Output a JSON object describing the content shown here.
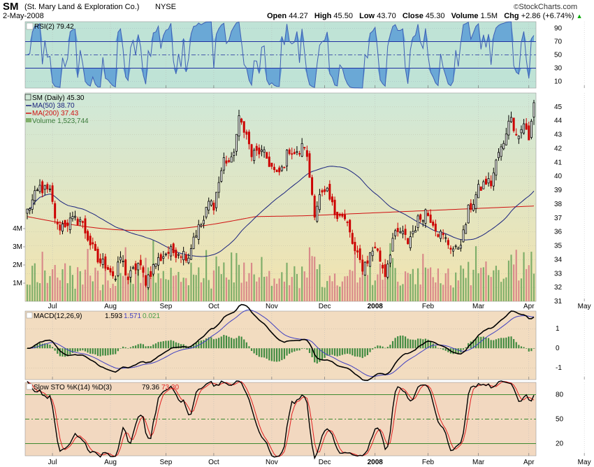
{
  "header": {
    "ticker": "SM",
    "company": "(St. Mary Land & Exploration Co.)",
    "exchange": "NYSE",
    "date": "2-May-2008",
    "open_label": "Open",
    "open": "44.27",
    "high_label": "High",
    "high": "45.50",
    "low_label": "Low",
    "low": "43.70",
    "close_label": "Close",
    "close": "45.30",
    "volume_label": "Volume",
    "volume": "1.5M",
    "chg_label": "Chg",
    "chg": "+2.86 (+6.74%)",
    "brand": "StockCharts.com",
    "brand_symbol": "©",
    "chg_arrow": "▲"
  },
  "colors": {
    "rsi_bg": "#bfe3d6",
    "price_bg_top": "#cfe8d8",
    "price_bg_bottom": "#f3e3ae",
    "macd_bg": "#f2dcc0",
    "sto_bg": "#f2d8c0",
    "rsi_line": "#3d5fb5",
    "rsi_fill": "#6aa8d6",
    "up": "#000000",
    "down": "#cc0000",
    "ma50": "#1a237e",
    "ma200": "#d01010",
    "vol_up": "#7fae6a",
    "vol_down": "#d98a8a",
    "macd_line": "#000000",
    "macd_signal": "#4040c0",
    "macd_hist": "#3f8a3f",
    "sto_k": "#000000",
    "sto_d": "#e02020",
    "hline": "#007000"
  },
  "chart_data": [
    {
      "type": "line",
      "name_label": "RSI(2) 79.42",
      "ylim": [
        0,
        100
      ],
      "yticks": [
        "90",
        "70",
        "50",
        "30",
        "10"
      ],
      "ytick_values": [
        90,
        70,
        50,
        30,
        10
      ],
      "levels": [
        70,
        50,
        30
      ],
      "series": [
        {
          "name": "RSI(2)",
          "last": 79.42
        }
      ]
    },
    {
      "type": "candlestick",
      "title": "SM (Daily) 45.30",
      "legend": [
        "MA(50) 38.70",
        "MA(200) 37.43",
        "Volume 1,523,744"
      ],
      "ylim": [
        31,
        46
      ],
      "yticks": [
        "45",
        "44",
        "43",
        "42",
        "41",
        "40",
        "39",
        "38",
        "37",
        "36",
        "35",
        "34",
        "33",
        "32",
        "31"
      ],
      "ytick_values": [
        45,
        44,
        43,
        42,
        41,
        40,
        39,
        38,
        37,
        36,
        35,
        34,
        33,
        32,
        31
      ],
      "volume_ticks": [
        "4M",
        "3M",
        "2M",
        "1M"
      ],
      "volume_tick_values": [
        4,
        3,
        2,
        1
      ],
      "x_months": [
        "Jul",
        "Aug",
        "Sep",
        "Oct",
        "Nov",
        "Dec",
        "2008",
        "Feb",
        "Mar",
        "Apr",
        "May"
      ],
      "month_start_index": [
        10,
        33,
        55,
        74,
        97,
        118,
        138,
        159,
        179,
        199,
        221
      ],
      "keypoints": [
        [
          0,
          37.5
        ],
        [
          5,
          39.2
        ],
        [
          9,
          38.8
        ],
        [
          12,
          36.3
        ],
        [
          16,
          36.7
        ],
        [
          21,
          36.9
        ],
        [
          24,
          35.6
        ],
        [
          28,
          33.9
        ],
        [
          32,
          33.6
        ],
        [
          35,
          32.6
        ],
        [
          37,
          34.2
        ],
        [
          40,
          32.6
        ],
        [
          44,
          33.7
        ],
        [
          47,
          32.5
        ],
        [
          51,
          33.8
        ],
        [
          55,
          34.5
        ],
        [
          60,
          34.6
        ],
        [
          64,
          34.3
        ],
        [
          66,
          35.7
        ],
        [
          70,
          36.8
        ],
        [
          72,
          38.1
        ],
        [
          74,
          38.0
        ],
        [
          78,
          41.2
        ],
        [
          81,
          41.0
        ],
        [
          84,
          44.0
        ],
        [
          86,
          43.6
        ],
        [
          89,
          41.5
        ],
        [
          92,
          41.8
        ],
        [
          95,
          41.3
        ],
        [
          99,
          40.0
        ],
        [
          101,
          40.5
        ],
        [
          104,
          42.0
        ],
        [
          107,
          41.5
        ],
        [
          110,
          42.3
        ],
        [
          112,
          40.0
        ],
        [
          114,
          37.5
        ],
        [
          116,
          38.5
        ],
        [
          119,
          38.7
        ],
        [
          122,
          37.4
        ],
        [
          124,
          37.4
        ],
        [
          127,
          36.5
        ],
        [
          130,
          34.5
        ],
        [
          133,
          33.5
        ],
        [
          135,
          34.0
        ],
        [
          138,
          35.0
        ],
        [
          142,
          33.0
        ],
        [
          145,
          35.5
        ],
        [
          148,
          36.0
        ],
        [
          151,
          35.3
        ],
        [
          155,
          36.8
        ],
        [
          158,
          37.5
        ],
        [
          161,
          36.8
        ],
        [
          163,
          36.0
        ],
        [
          167,
          35.2
        ],
        [
          170,
          34.6
        ],
        [
          173,
          35.8
        ],
        [
          175,
          37.5
        ],
        [
          177,
          38.2
        ],
        [
          179,
          39.0
        ],
        [
          182,
          39.6
        ],
        [
          184,
          39.5
        ],
        [
          187,
          41.7
        ],
        [
          189,
          42.2
        ],
        [
          191,
          44.3
        ],
        [
          193,
          43.7
        ],
        [
          195,
          42.9
        ],
        [
          197,
          43.9
        ],
        [
          199,
          42.5
        ],
        [
          201,
          45.3
        ]
      ],
      "series": [
        {
          "name": "SM (Daily)",
          "last": 45.3
        },
        {
          "name": "MA(50)",
          "last": 38.7
        },
        {
          "name": "MA(200)",
          "last": 37.43
        },
        {
          "name": "Volume",
          "last": 1523744
        }
      ]
    },
    {
      "type": "line",
      "name_label": "MACD(12,26,9)",
      "values_label": [
        "1.593",
        "1.571",
        "0.021"
      ],
      "ylim": [
        -1.6,
        1.9
      ],
      "yticks": [
        "1",
        "0",
        "-1"
      ],
      "ytick_values": [
        1,
        0,
        -1
      ],
      "series": [
        {
          "name": "MACD",
          "last": 1.593
        },
        {
          "name": "Signal",
          "last": 1.571
        },
        {
          "name": "Histogram",
          "last": 0.021
        }
      ]
    },
    {
      "type": "line",
      "name_label": "Slow STO %K(14) %D(3)",
      "values_label": [
        "79.36",
        "73.30"
      ],
      "ylim": [
        5,
        95
      ],
      "yticks": [
        "80",
        "50",
        "20"
      ],
      "ytick_values": [
        80,
        50,
        20
      ],
      "levels": [
        80,
        50,
        20
      ],
      "series": [
        {
          "name": "%K(14)",
          "last": 79.36
        },
        {
          "name": "%D(3)",
          "last": 73.3
        }
      ]
    }
  ]
}
